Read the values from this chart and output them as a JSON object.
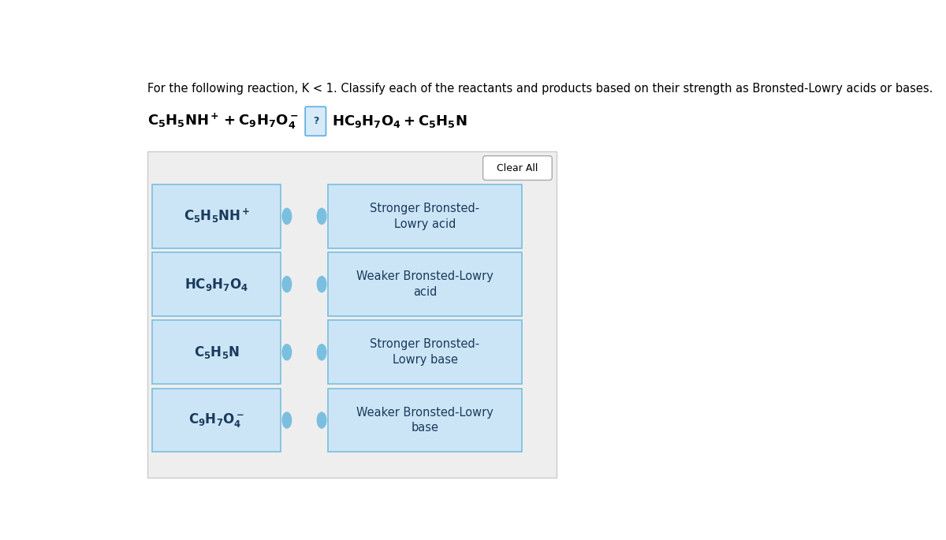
{
  "title_text": "For the following reaction, K < 1. Classify each of the reactants and products based on their strength as Bronsted-Lowry acids or bases.",
  "bg_color": "#eeeeee",
  "box_bg": "#cce5f6",
  "box_border": "#7abfdf",
  "text_color": "#1a3a5c",
  "clear_btn_color": "#ffffff",
  "clear_btn_border": "#aaaaaa",
  "left_formulas": [
    "$\\mathbf{C_5H_5NH^+}$",
    "$\\mathbf{HC_9H_7O_4}$",
    "$\\mathbf{C_5H_5N}$",
    "$\\mathbf{C_9H_7O_4^-}$"
  ],
  "right_items": [
    "Stronger Bronsted-\nLowry acid",
    "Weaker Bronsted-Lowry\nacid",
    "Stronger Bronsted-\nLowry base",
    "Weaker Bronsted-Lowry\nbase"
  ],
  "dot_color": "#7abfdf",
  "figwidth": 12.0,
  "figheight": 6.85
}
